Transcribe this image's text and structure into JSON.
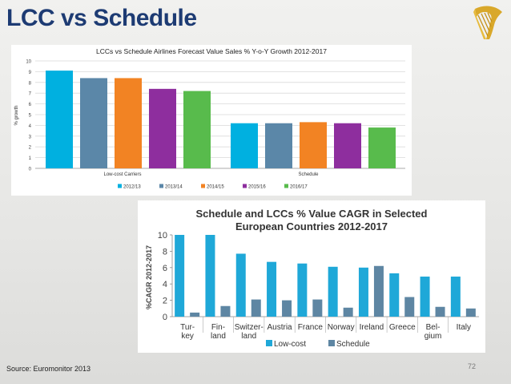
{
  "slide": {
    "title": "LCC vs Schedule",
    "source": "Source: Euromonitor 2013",
    "page_number": "72",
    "logo_icon": "gold-harp-logo-icon"
  },
  "colors": {
    "title": "#1d3b73",
    "s2012": "#00b0e0",
    "s2013": "#5b87a8",
    "s2014": "#f28323",
    "s2015": "#8e2e9e",
    "s2016": "#58bb4c",
    "lowcost": "#1fa8d8",
    "schedule": "#5e86a3"
  },
  "chart_data": [
    {
      "type": "bar",
      "title": "LCCs vs Schedule Airlines Forecast Value Sales % Y-o-Y Growth 2012-2017",
      "xlabel": "",
      "ylabel": "% growth",
      "ylim": [
        0,
        10
      ],
      "yticks": [
        "0",
        "1",
        "2",
        "3",
        "4",
        "5",
        "6",
        "7",
        "8",
        "9",
        "10"
      ],
      "categories": [
        "Low-cost Carriers",
        "Schedule"
      ],
      "series": [
        {
          "name": "2012/13",
          "values": [
            9.1,
            4.2
          ]
        },
        {
          "name": "2013/14",
          "values": [
            8.4,
            4.2
          ]
        },
        {
          "name": "2014/15",
          "values": [
            8.4,
            4.3
          ]
        },
        {
          "name": "2015/16",
          "values": [
            7.4,
            4.2
          ]
        },
        {
          "name": "2016/17",
          "values": [
            7.2,
            3.8
          ]
        }
      ],
      "legend": "bottom",
      "grid": true
    },
    {
      "type": "bar",
      "title": [
        "Schedule and LCCs % Value CAGR in Selected",
        "European Countries 2012-2017"
      ],
      "xlabel": "",
      "ylabel": "%CAGR 2012-2017",
      "ylim": [
        0,
        10
      ],
      "yticks": [
        "0",
        "2",
        "4",
        "6",
        "8",
        "10"
      ],
      "categories": [
        [
          "Tur-",
          "key"
        ],
        [
          "Fin-",
          "land"
        ],
        [
          "Switzer-",
          "land"
        ],
        [
          "Austria"
        ],
        [
          "France"
        ],
        [
          "Norway"
        ],
        [
          "Ireland"
        ],
        [
          "Greece"
        ],
        [
          "Bel-",
          "gium"
        ],
        [
          "Italy"
        ]
      ],
      "series": [
        {
          "name": "Low-cost",
          "values": [
            10,
            10,
            7.7,
            6.7,
            6.5,
            6.1,
            6.0,
            5.3,
            4.9,
            4.9
          ]
        },
        {
          "name": "Schedule",
          "values": [
            0.5,
            1.3,
            2.1,
            2.0,
            2.1,
            1.1,
            6.2,
            2.4,
            1.2,
            1.0
          ]
        }
      ],
      "legend": "bottom",
      "grid": false
    }
  ]
}
